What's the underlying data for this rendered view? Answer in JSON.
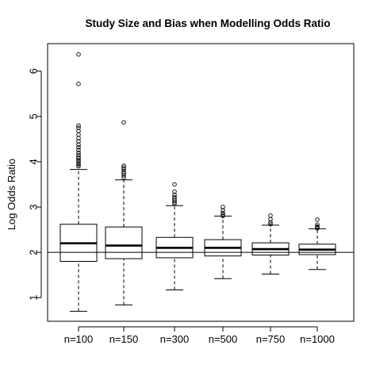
{
  "chart_data": {
    "type": "boxplot",
    "title": "Study Size and Bias when Modelling Odds Ratio",
    "xlabel": "",
    "ylabel": "Log Odds Ratio",
    "ylim": [
      0.5,
      6.5
    ],
    "yticks": [
      1,
      2,
      3,
      4,
      5,
      6
    ],
    "grid": false,
    "legend": "none",
    "reference_line": {
      "y": 2
    },
    "categories": [
      "n=100",
      "n=150",
      "n=300",
      "n=500",
      "n=750",
      "n=1000"
    ],
    "boxes": [
      {
        "category": "n=100",
        "whisker_low": 0.7,
        "q1": 1.8,
        "median": 2.2,
        "q3": 2.62,
        "whisker_high": 3.83,
        "outliers": [
          3.9,
          3.93,
          3.96,
          4.0,
          4.03,
          4.07,
          4.1,
          4.15,
          4.2,
          4.26,
          4.32,
          4.38,
          4.45,
          4.52,
          4.6,
          4.68,
          4.75,
          4.8,
          5.72,
          6.37
        ]
      },
      {
        "category": "n=150",
        "whisker_low": 0.84,
        "q1": 1.86,
        "median": 2.15,
        "q3": 2.56,
        "whisker_high": 3.6,
        "outliers": [
          3.65,
          3.7,
          3.74,
          3.78,
          3.83,
          3.87,
          3.91,
          4.87
        ]
      },
      {
        "category": "n=300",
        "whisker_low": 1.17,
        "q1": 1.88,
        "median": 2.1,
        "q3": 2.33,
        "whisker_high": 3.03,
        "outliers": [
          3.07,
          3.1,
          3.14,
          3.18,
          3.22,
          3.27,
          3.34,
          3.5
        ]
      },
      {
        "category": "n=500",
        "whisker_low": 1.42,
        "q1": 1.92,
        "median": 2.1,
        "q3": 2.28,
        "whisker_high": 2.8,
        "outliers": [
          2.8,
          2.83,
          2.87,
          2.93,
          3.0
        ]
      },
      {
        "category": "n=750",
        "whisker_low": 1.52,
        "q1": 1.94,
        "median": 2.07,
        "q3": 2.21,
        "whisker_high": 2.6,
        "outliers": [
          2.62,
          2.66,
          2.73,
          2.81
        ]
      },
      {
        "category": "n=1000",
        "whisker_low": 1.62,
        "q1": 1.95,
        "median": 2.06,
        "q3": 2.18,
        "whisker_high": 2.52,
        "outliers": [
          2.53,
          2.55,
          2.57,
          2.61,
          2.72
        ]
      }
    ]
  }
}
